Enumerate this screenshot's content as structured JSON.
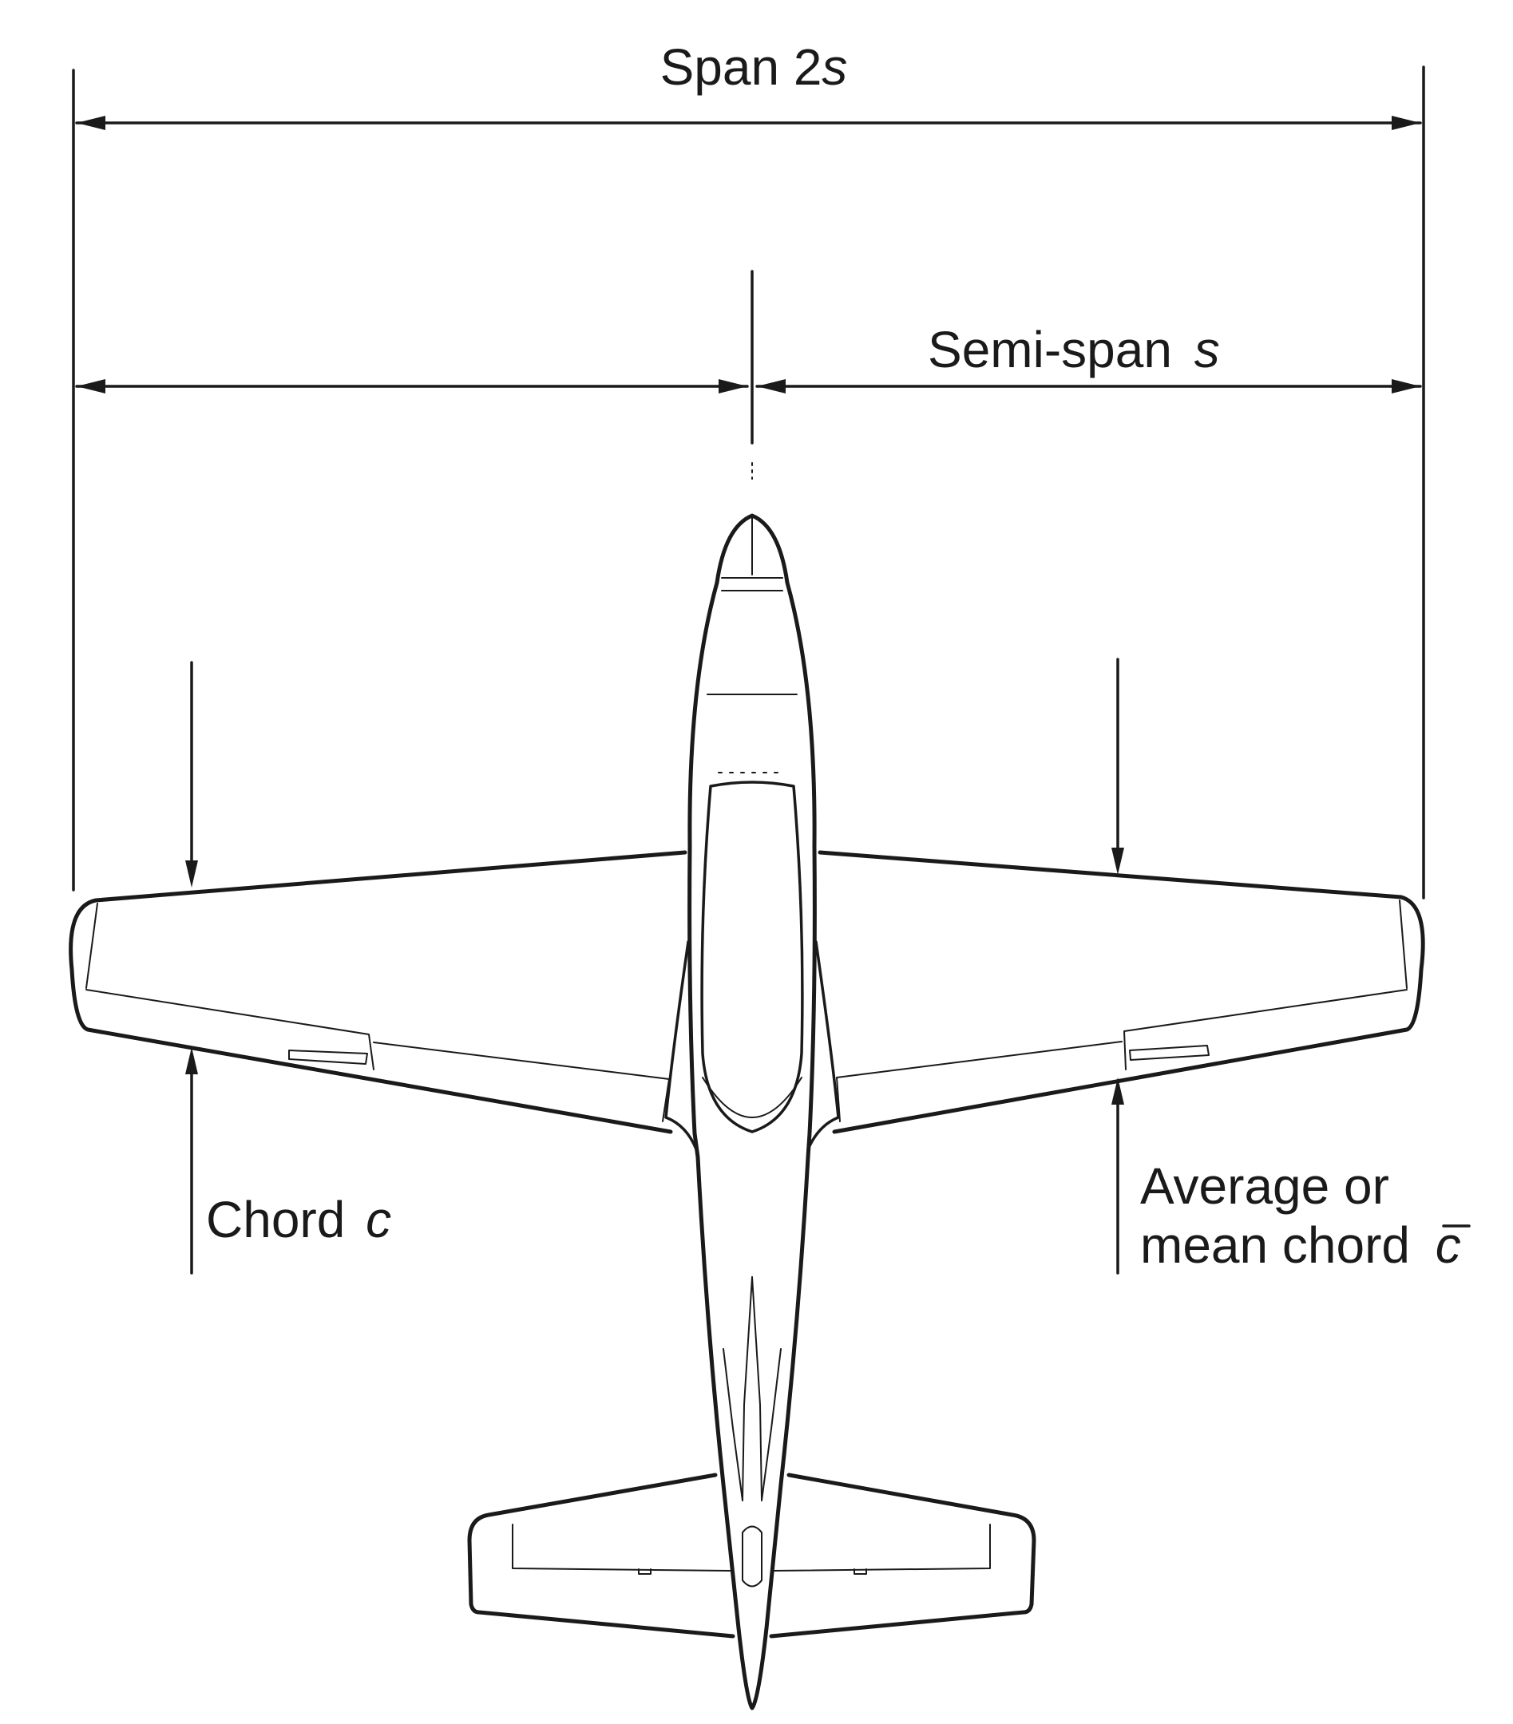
{
  "labels": {
    "span_prefix": "Span 2",
    "span_var": "s",
    "semispan_prefix": "Semi-span ",
    "semispan_var": "s",
    "chord_prefix": "Chord ",
    "chord_var": "c",
    "mean_line1": "Average or",
    "mean_line2_prefix": "mean chord ",
    "mean_var": "c"
  },
  "line_color": "#1a1a1a"
}
